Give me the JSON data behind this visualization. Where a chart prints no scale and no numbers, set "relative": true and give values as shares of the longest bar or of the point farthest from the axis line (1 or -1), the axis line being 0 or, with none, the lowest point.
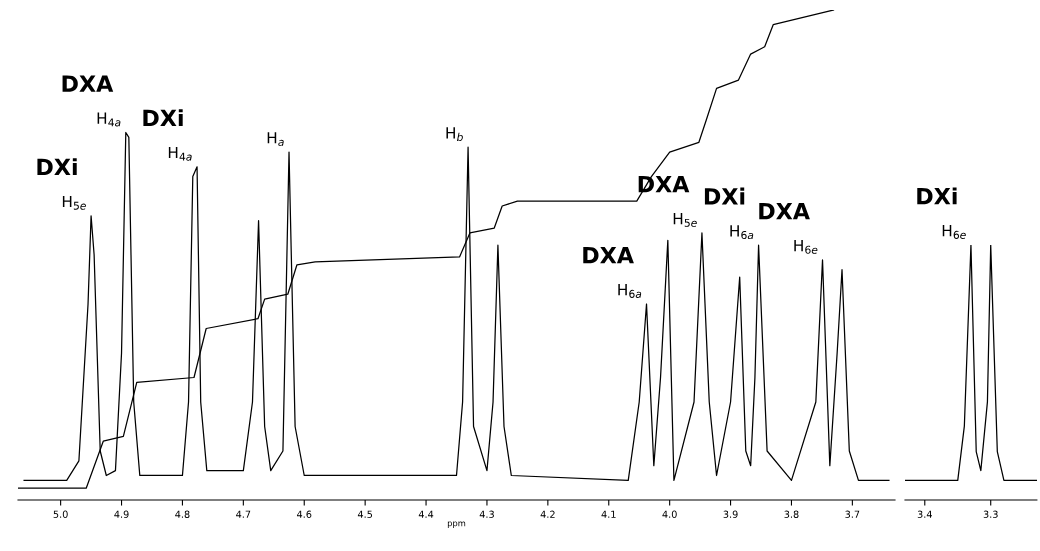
{
  "chart_data": [
    {
      "type": "line",
      "relative": true,
      "xlabel": "ppm",
      "xlim": [
        5.07,
        3.63
      ],
      "xticks": [
        {
          "value": 5.0,
          "label": "5.0"
        },
        4.9,
        4.8,
        4.7,
        4.6,
        4.5,
        4.4,
        4.3,
        4.2,
        4.1,
        {
          "value": 4.0,
          "label": "4.0"
        },
        3.9,
        3.8,
        3.7
      ],
      "tick_labels": "x",
      "grid": false,
      "series": [
        {
          "color": "#000000",
          "x": [
            5.06,
            4.99,
            4.97,
            4.955,
            4.95,
            4.945,
            4.935,
            4.925,
            4.91,
            4.9,
            4.893,
            4.888,
            4.88,
            4.87,
            4.8,
            4.79,
            4.783,
            4.776,
            4.77,
            4.76,
            4.7,
            4.685,
            4.675,
            4.665,
            4.655,
            4.635,
            4.625,
            4.615,
            4.6,
            4.35,
            4.34,
            4.331,
            4.322,
            4.3,
            4.29,
            4.282,
            4.272,
            4.26,
            4.068,
            4.05,
            4.038,
            4.026,
            4.015,
            4.003,
            3.993,
            3.96,
            3.947,
            3.935,
            3.923,
            3.9,
            3.885,
            3.875,
            3.867,
            3.86,
            3.854,
            3.84,
            3.8,
            3.76,
            3.749,
            3.737,
            3.725,
            3.717,
            3.705,
            3.69,
            3.64
          ],
          "values": [
            0.04,
            0.04,
            0.08,
            0.4,
            0.58,
            0.5,
            0.1,
            0.05,
            0.06,
            0.3,
            0.75,
            0.74,
            0.2,
            0.05,
            0.05,
            0.2,
            0.66,
            0.68,
            0.2,
            0.06,
            0.06,
            0.2,
            0.57,
            0.15,
            0.06,
            0.1,
            0.71,
            0.15,
            0.05,
            0.05,
            0.2,
            0.72,
            0.15,
            0.06,
            0.2,
            0.52,
            0.15,
            0.05,
            0.04,
            0.2,
            0.4,
            0.07,
            0.25,
            0.53,
            0.04,
            0.2,
            0.545,
            0.2,
            0.05,
            0.2,
            0.455,
            0.1,
            0.07,
            0.25,
            0.52,
            0.1,
            0.04,
            0.2,
            0.49,
            0.07,
            0.3,
            0.47,
            0.1,
            0.04,
            0.04
          ]
        },
        {
          "color": "#000000",
          "x": [
            5.07,
            4.958,
            4.93,
            4.897,
            4.875,
            4.781,
            4.761,
            4.676,
            4.665,
            4.627,
            4.612,
            4.582,
            4.345,
            4.328,
            4.288,
            4.275,
            4.25,
            4.054,
            4.03,
            4.0,
            3.952,
            3.94,
            3.923,
            3.887,
            3.867,
            3.844,
            3.83,
            3.731
          ],
          "values": [
            0.024,
            0.024,
            0.12,
            0.13,
            0.24,
            0.25,
            0.35,
            0.37,
            0.41,
            0.42,
            0.48,
            0.486,
            0.496,
            0.545,
            0.555,
            0.6,
            0.61,
            0.61,
            0.66,
            0.71,
            0.73,
            0.775,
            0.84,
            0.857,
            0.91,
            0.925,
            0.97,
            1.0
          ]
        }
      ],
      "annotations": [
        {
          "text": "H$_{5e}$",
          "x": 4.95,
          "y": 0.58
        },
        {
          "text": "DXi",
          "x": 4.95,
          "y": 0.58
        },
        {
          "text": "H$_{4a}$",
          "x": 4.893,
          "y": 0.75
        },
        {
          "text": "DXA",
          "x": 4.893,
          "y": 0.75
        },
        {
          "text": "H$_{4a}$",
          "x": 4.776,
          "y": 0.68
        },
        {
          "text": "DXi",
          "x": 4.776,
          "y": 0.68
        },
        {
          "text": "H$_{a}$",
          "x": 4.625,
          "y": 0.71
        },
        {
          "text": "H$_{b}$",
          "x": 4.331,
          "y": 0.72
        },
        {
          "text": "H$_{6a}$",
          "x": 4.038,
          "y": 0.4
        },
        {
          "text": "DXA",
          "x": 4.038,
          "y": 0.4
        },
        {
          "text": "H$_{5e}$",
          "x": 3.947,
          "y": 0.545
        },
        {
          "text": "DXA",
          "x": 3.947,
          "y": 0.545
        },
        {
          "text": "H$_{6a}$",
          "x": 3.854,
          "y": 0.52
        },
        {
          "text": "DXi",
          "x": 3.854,
          "y": 0.52
        },
        {
          "text": "H$_{6e}$",
          "x": 3.749,
          "y": 0.49
        },
        {
          "text": "DXA",
          "x": 3.749,
          "y": 0.49
        }
      ]
    },
    {
      "type": "line",
      "relative": true,
      "xlim": [
        3.43,
        3.23
      ],
      "xticks": [
        3.4,
        3.3
      ],
      "tick_labels": "x",
      "grid": false,
      "series": [
        {
          "color": "#000000",
          "x": [
            3.43,
            3.35,
            3.34,
            3.33,
            3.322,
            3.315,
            3.305,
            3.3,
            3.29,
            3.28,
            3.23
          ],
          "values": [
            0.077,
            0.077,
            0.29,
            1,
            0.19,
            0.115,
            0.385,
            1,
            0.19,
            0.077,
            0.077
          ]
        }
      ],
      "annotations": [
        {
          "text": "H$_{6e}$",
          "x": 3.33,
          "y": 1
        },
        {
          "text": "DXi",
          "x": 3.33,
          "y": 1
        }
      ]
    }
  ]
}
